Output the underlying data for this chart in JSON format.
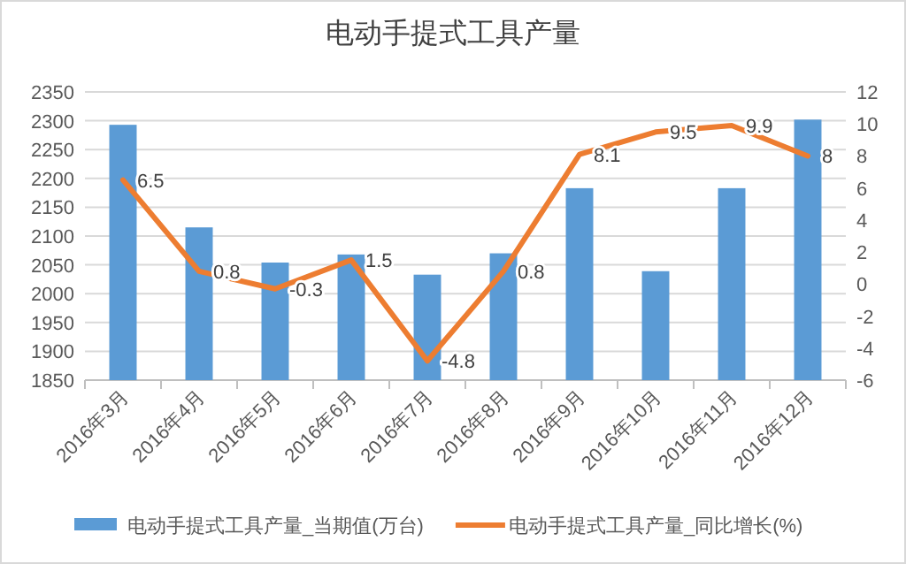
{
  "chart_data": {
    "type": "bar",
    "title": "电动手提式工具产量",
    "categories": [
      "2016年3月",
      "2016年4月",
      "2016年5月",
      "2016年6月",
      "2016年7月",
      "2016年8月",
      "2016年9月",
      "2016年10月",
      "2016年11月",
      "2016年12月"
    ],
    "series": [
      {
        "name": "电动手提式工具产量_当期值(万台)",
        "color": "#5b9bd5",
        "values": [
          2293,
          2115,
          2054,
          2068,
          2033,
          2070,
          2183,
          2039,
          2183,
          2302
        ]
      },
      {
        "name": "电动手提式工具产量_同比增长(%)",
        "type": "line",
        "axis": "y2",
        "color": "#ed7d31",
        "values": [
          6.5,
          0.8,
          -0.3,
          1.5,
          -4.8,
          0.8,
          8.1,
          9.5,
          9.9,
          8
        ],
        "value_labels": [
          "6.5",
          "0.8",
          "-0.3",
          "1.5",
          "-4.8",
          "0.8",
          "8.1",
          "9.5",
          "9.9",
          "8"
        ]
      }
    ],
    "ylim": [
      1850,
      2350
    ],
    "yticks": [
      1850,
      1900,
      1950,
      2000,
      2050,
      2100,
      2150,
      2200,
      2250,
      2300,
      2350
    ],
    "y2lim": [
      -6,
      12
    ],
    "y2ticks": [
      -6,
      -4,
      -2,
      0,
      2,
      4,
      6,
      8,
      10,
      12
    ],
    "grid": "y",
    "legend": "bottom",
    "marker": "none"
  }
}
